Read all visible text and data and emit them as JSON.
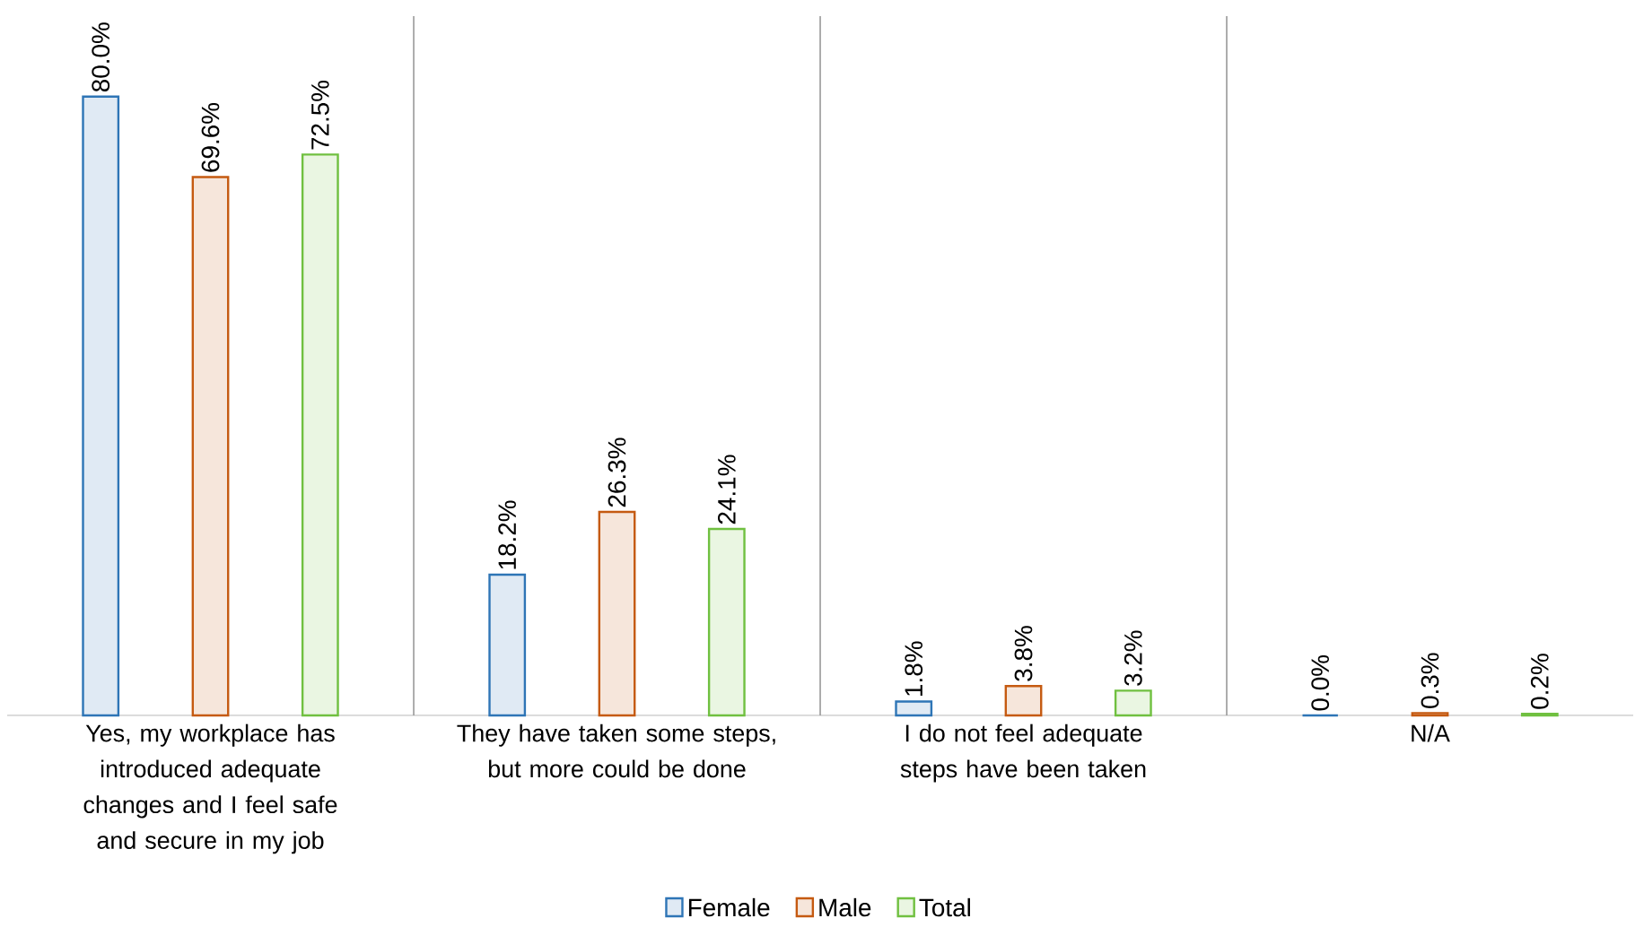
{
  "chart_data": {
    "type": "bar",
    "categories": [
      "Yes, my workplace has introduced adequate changes and I feel safe and secure in my job",
      "They have taken some steps, but more could be done",
      "I do not feel adequate steps have been taken",
      "N/A"
    ],
    "series": [
      {
        "name": "Female",
        "color": "#2e75b6",
        "values": [
          80.0,
          18.2,
          1.8,
          0.0
        ],
        "value_labels": [
          "80.0%",
          "18.2%",
          "1.8%",
          "0.0%"
        ]
      },
      {
        "name": "Male",
        "color": "#c55a11",
        "values": [
          69.6,
          26.3,
          3.8,
          0.3
        ],
        "value_labels": [
          "69.6%",
          "26.3%",
          "3.8%",
          "0.3%"
        ]
      },
      {
        "name": "Total",
        "color": "#70c040",
        "values": [
          72.5,
          24.1,
          3.2,
          0.2
        ],
        "value_labels": [
          "72.5%",
          "24.1%",
          "3.2%",
          "0.2%"
        ]
      }
    ],
    "legend": "bottom"
  }
}
